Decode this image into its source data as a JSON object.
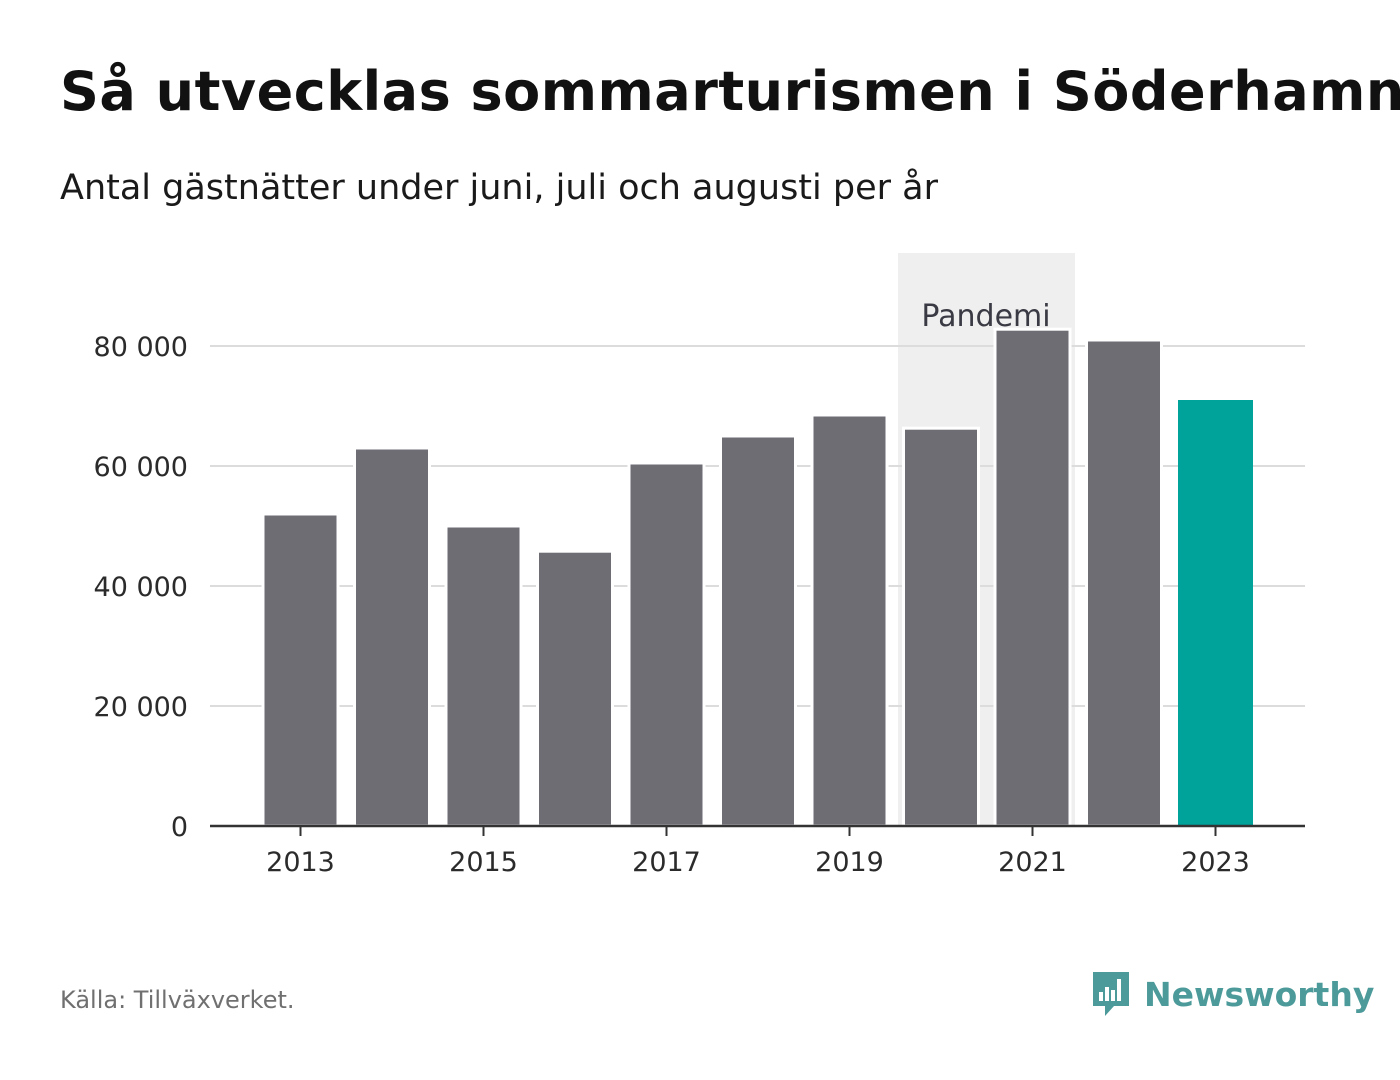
{
  "title": "Så utvecklas sommarturismen i Söderhamn",
  "subtitle": "Antal gästnätter under juni, juli och augusti per år",
  "source": "Källa: Tillväxverket.",
  "brand": {
    "name": "Newsworthy",
    "icon": "bar-chart-logo-icon",
    "color": "#4d9a9a"
  },
  "chart_data": {
    "type": "bar",
    "categories": [
      "2013",
      "2014",
      "2015",
      "2016",
      "2017",
      "2018",
      "2019",
      "2020",
      "2021",
      "2022",
      "2023"
    ],
    "values": [
      52000,
      63000,
      50000,
      45800,
      60500,
      65000,
      68500,
      66300,
      82800,
      81000,
      71000
    ],
    "x_tick_labels": [
      "2013",
      "2015",
      "2017",
      "2019",
      "2021",
      "2023"
    ],
    "y_ticks": [
      0,
      20000,
      40000,
      60000,
      80000
    ],
    "y_tick_labels": [
      "0",
      "20 000",
      "40 000",
      "60 000",
      "80 000"
    ],
    "ylim": [
      0,
      90000
    ],
    "grid": true,
    "bar_color": "#6e6d74",
    "highlight": {
      "category": "2023",
      "color": "#00a39a"
    },
    "annotation": {
      "label": "Pandemi",
      "from": "2020",
      "to": "2021",
      "color": "#efefef"
    }
  }
}
